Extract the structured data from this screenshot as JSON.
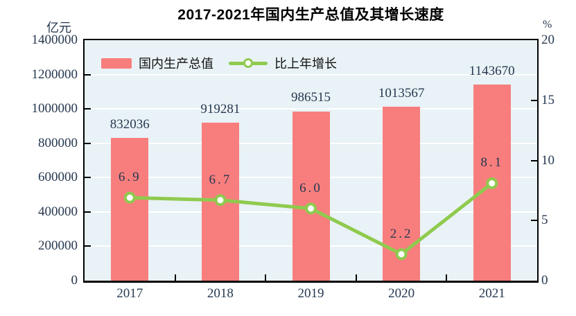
{
  "chart_data": {
    "type": "bar+line",
    "title": "2017-2021年国内生产总值及其增长速度",
    "categories": [
      "2017",
      "2018",
      "2019",
      "2020",
      "2021"
    ],
    "series": [
      {
        "name": "国内生产总值",
        "type": "bar",
        "yaxis": "left",
        "values": [
          832036,
          919281,
          986515,
          1013567,
          1143670
        ],
        "labels": [
          "832036",
          "919281",
          "986515",
          "1013567",
          "1143670"
        ],
        "color": "#f87e7e"
      },
      {
        "name": "比上年增长",
        "type": "line",
        "yaxis": "right",
        "values": [
          6.9,
          6.7,
          6.0,
          2.2,
          8.1
        ],
        "labels": [
          "6.9",
          "6.7",
          "6.0",
          "2.2",
          "8.1"
        ],
        "color": "#8fca4e",
        "marker_fill": "#ffffff",
        "marker_stroke": "#8fca4e"
      }
    ],
    "left_axis": {
      "unit": "亿元",
      "min": 0,
      "max": 1400000,
      "tick_step": 200000,
      "ticks": [
        0,
        200000,
        400000,
        600000,
        800000,
        1000000,
        1200000,
        1400000
      ],
      "tick_labels": [
        "0",
        "200000",
        "400000",
        "600000",
        "800000",
        "1000000",
        "1200000",
        "1400000"
      ]
    },
    "right_axis": {
      "unit": "%",
      "min": 0,
      "max": 20,
      "tick_step": 5,
      "ticks": [
        0,
        5,
        10,
        15,
        20
      ],
      "tick_labels": [
        "0",
        "5",
        "10",
        "15",
        "20"
      ]
    },
    "grid": true,
    "legend_position": "top-left-inside",
    "plot_bg_color": "#e9f2f6",
    "grid_color": "#ffffff",
    "text_color": "#263850",
    "axis_color": "#000000"
  }
}
